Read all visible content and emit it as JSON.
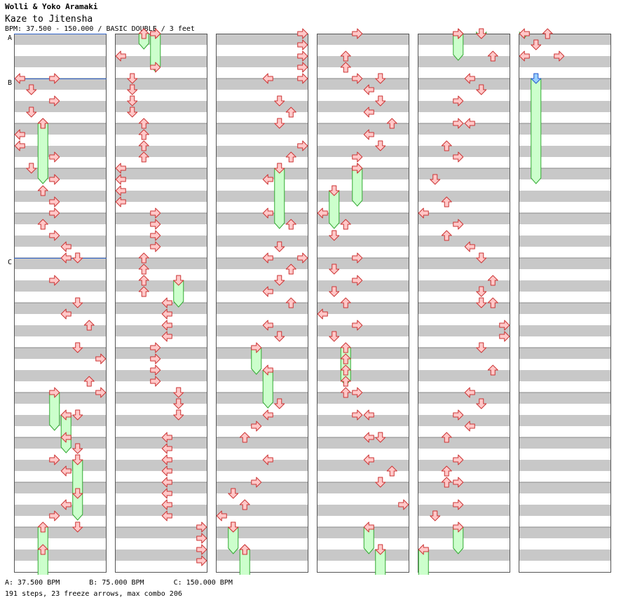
{
  "header": {
    "artist": "Wolli & Yoko Aramaki",
    "title": "Kaze to Jitensha",
    "info": "BPM: 37.500 - 150.000 / BASIC DOUBLE / 3 feet"
  },
  "chart": {
    "columns": 6,
    "measures_per_column": 12,
    "lanes": 8,
    "bpm_markers": [
      {
        "label": "A",
        "column": 0,
        "beat": 0
      },
      {
        "label": "B",
        "column": 0,
        "beat": 4
      },
      {
        "label": "C",
        "column": 0,
        "beat": 20
      }
    ],
    "colors": {
      "arrow_fill": "#ffc8c8",
      "arrow_stroke": "#cc3333",
      "freeze_fill": "#ccffcc",
      "freeze_stroke": "#33aa33",
      "shock_fill": "#9ad0ff",
      "shock_stroke": "#2255cc",
      "stripe": "#c8c8c8",
      "bpm_line": "#3366cc"
    },
    "arrows": [
      [
        0,
        4,
        0
      ],
      [
        0,
        4,
        3
      ],
      [
        0,
        5,
        1
      ],
      [
        0,
        6,
        3
      ],
      [
        0,
        7,
        1
      ],
      [
        0,
        8,
        2
      ],
      [
        0,
        9,
        0
      ],
      [
        0,
        10,
        0
      ],
      [
        0,
        11,
        3
      ],
      [
        0,
        12,
        1
      ],
      [
        0,
        13,
        3
      ],
      [
        0,
        14,
        2
      ],
      [
        0,
        15,
        3
      ],
      [
        0,
        16,
        3
      ],
      [
        0,
        17,
        2
      ],
      [
        0,
        18,
        3
      ],
      [
        0,
        19,
        4
      ],
      [
        0,
        20,
        4
      ],
      [
        0,
        20,
        5
      ],
      [
        0,
        22,
        3
      ],
      [
        0,
        24,
        5
      ],
      [
        0,
        25,
        4
      ],
      [
        0,
        26,
        6
      ],
      [
        0,
        28,
        5
      ],
      [
        0,
        29,
        7
      ],
      [
        0,
        31,
        6
      ],
      [
        0,
        32,
        7
      ],
      [
        0,
        34,
        5
      ],
      [
        0,
        36,
        4
      ],
      [
        0,
        37,
        5
      ],
      [
        0,
        38,
        3
      ],
      [
        0,
        39,
        4
      ],
      [
        0,
        41,
        5
      ],
      [
        0,
        42,
        4
      ],
      [
        0,
        43,
        3
      ],
      [
        0,
        44,
        5
      ],
      [
        0,
        46,
        2
      ],
      [
        1,
        0,
        3
      ],
      [
        1,
        2,
        0
      ],
      [
        1,
        3,
        3
      ],
      [
        1,
        4,
        1
      ],
      [
        1,
        5,
        1
      ],
      [
        1,
        6,
        1
      ],
      [
        1,
        7,
        1
      ],
      [
        1,
        8,
        2
      ],
      [
        1,
        9,
        2
      ],
      [
        1,
        10,
        2
      ],
      [
        1,
        11,
        2
      ],
      [
        1,
        12,
        0
      ],
      [
        1,
        13,
        0
      ],
      [
        1,
        14,
        0
      ],
      [
        1,
        15,
        0
      ],
      [
        1,
        16,
        3
      ],
      [
        1,
        17,
        3
      ],
      [
        1,
        18,
        3
      ],
      [
        1,
        19,
        3
      ],
      [
        1,
        20,
        2
      ],
      [
        1,
        21,
        2
      ],
      [
        1,
        22,
        2
      ],
      [
        1,
        23,
        2
      ],
      [
        1,
        24,
        4
      ],
      [
        1,
        25,
        4
      ],
      [
        1,
        26,
        4
      ],
      [
        1,
        27,
        4
      ],
      [
        1,
        28,
        3
      ],
      [
        1,
        29,
        3
      ],
      [
        1,
        30,
        3
      ],
      [
        1,
        31,
        3
      ],
      [
        1,
        32,
        5
      ],
      [
        1,
        33,
        5
      ],
      [
        1,
        34,
        5
      ],
      [
        1,
        36,
        4
      ],
      [
        1,
        37,
        4
      ],
      [
        1,
        38,
        4
      ],
      [
        1,
        39,
        4
      ],
      [
        1,
        40,
        4
      ],
      [
        1,
        41,
        4
      ],
      [
        1,
        42,
        4
      ],
      [
        1,
        43,
        4
      ],
      [
        1,
        44,
        7
      ],
      [
        1,
        45,
        7
      ],
      [
        1,
        46,
        7
      ],
      [
        1,
        47,
        7
      ],
      [
        2,
        0,
        7
      ],
      [
        2,
        1,
        7
      ],
      [
        2,
        2,
        7
      ],
      [
        2,
        3,
        7
      ],
      [
        2,
        4,
        4
      ],
      [
        2,
        4,
        7
      ],
      [
        2,
        6,
        5
      ],
      [
        2,
        7,
        6
      ],
      [
        2,
        8,
        5
      ],
      [
        2,
        10,
        7
      ],
      [
        2,
        11,
        6
      ],
      [
        2,
        13,
        4
      ],
      [
        2,
        16,
        4
      ],
      [
        2,
        17,
        6
      ],
      [
        2,
        19,
        5
      ],
      [
        2,
        20,
        4
      ],
      [
        2,
        20,
        7
      ],
      [
        2,
        21,
        6
      ],
      [
        2,
        22,
        5
      ],
      [
        2,
        23,
        4
      ],
      [
        2,
        24,
        6
      ],
      [
        2,
        26,
        4
      ],
      [
        2,
        27,
        5
      ],
      [
        2,
        33,
        5
      ],
      [
        2,
        34,
        4
      ],
      [
        2,
        35,
        3
      ],
      [
        2,
        36,
        2
      ],
      [
        2,
        38,
        4
      ],
      [
        2,
        40,
        3
      ],
      [
        2,
        41,
        1
      ],
      [
        2,
        42,
        2
      ],
      [
        2,
        43,
        0
      ],
      [
        2,
        44,
        1
      ],
      [
        2,
        46,
        2
      ],
      [
        3,
        0,
        3
      ],
      [
        3,
        2,
        2
      ],
      [
        3,
        3,
        2
      ],
      [
        3,
        4,
        3
      ],
      [
        3,
        4,
        5
      ],
      [
        3,
        5,
        4
      ],
      [
        3,
        6,
        5
      ],
      [
        3,
        7,
        4
      ],
      [
        3,
        8,
        6
      ],
      [
        3,
        9,
        4
      ],
      [
        3,
        10,
        5
      ],
      [
        3,
        11,
        3
      ],
      [
        3,
        12,
        3
      ],
      [
        3,
        16,
        0
      ],
      [
        3,
        17,
        2
      ],
      [
        3,
        18,
        1
      ],
      [
        3,
        20,
        3
      ],
      [
        3,
        21,
        1
      ],
      [
        3,
        22,
        3
      ],
      [
        3,
        23,
        1
      ],
      [
        3,
        24,
        2
      ],
      [
        3,
        25,
        0
      ],
      [
        3,
        26,
        3
      ],
      [
        3,
        27,
        1
      ],
      [
        3,
        29,
        2
      ],
      [
        3,
        30,
        2
      ],
      [
        3,
        31,
        2
      ],
      [
        3,
        32,
        2
      ],
      [
        3,
        32,
        3
      ],
      [
        3,
        34,
        3
      ],
      [
        3,
        34,
        4
      ],
      [
        3,
        36,
        4
      ],
      [
        3,
        36,
        5
      ],
      [
        3,
        38,
        4
      ],
      [
        3,
        39,
        6
      ],
      [
        3,
        40,
        5
      ],
      [
        3,
        42,
        7
      ],
      [
        4,
        0,
        3
      ],
      [
        4,
        2,
        6
      ],
      [
        4,
        4,
        4
      ],
      [
        4,
        5,
        5
      ],
      [
        4,
        6,
        3
      ],
      [
        4,
        8,
        3
      ],
      [
        4,
        8,
        4
      ],
      [
        4,
        10,
        2
      ],
      [
        4,
        11,
        3
      ],
      [
        4,
        13,
        1
      ],
      [
        4,
        15,
        2
      ],
      [
        4,
        16,
        0
      ],
      [
        4,
        17,
        3
      ],
      [
        4,
        18,
        2
      ],
      [
        4,
        19,
        4
      ],
      [
        4,
        20,
        5
      ],
      [
        4,
        22,
        6
      ],
      [
        4,
        23,
        5
      ],
      [
        4,
        24,
        5
      ],
      [
        4,
        24,
        6
      ],
      [
        4,
        26,
        7
      ],
      [
        4,
        27,
        7
      ],
      [
        4,
        28,
        5
      ],
      [
        4,
        30,
        6
      ],
      [
        4,
        32,
        4
      ],
      [
        4,
        33,
        5
      ],
      [
        4,
        34,
        3
      ],
      [
        4,
        35,
        4
      ],
      [
        4,
        36,
        2
      ],
      [
        4,
        38,
        3
      ],
      [
        4,
        39,
        2
      ],
      [
        4,
        40,
        2
      ],
      [
        4,
        40,
        3
      ],
      [
        4,
        42,
        3
      ],
      [
        4,
        43,
        1
      ],
      [
        5,
        0,
        2
      ],
      [
        5,
        1,
        1
      ],
      [
        5,
        2,
        0
      ],
      [
        5,
        2,
        3
      ]
    ],
    "freezes": [
      [
        0,
        8,
        13,
        2
      ],
      [
        0,
        32,
        35,
        3
      ],
      [
        0,
        34,
        37,
        4
      ],
      [
        0,
        38,
        43,
        5
      ],
      [
        0,
        44,
        49,
        2
      ],
      [
        1,
        0,
        1,
        2
      ],
      [
        1,
        0,
        3,
        3
      ],
      [
        1,
        22,
        24,
        5
      ],
      [
        2,
        12,
        17,
        5
      ],
      [
        2,
        28,
        30,
        3
      ],
      [
        2,
        30,
        33,
        4
      ],
      [
        2,
        44,
        46,
        1
      ],
      [
        2,
        46,
        50,
        2
      ],
      [
        3,
        12,
        15,
        3
      ],
      [
        3,
        14,
        17,
        1
      ],
      [
        3,
        28,
        31,
        2
      ],
      [
        3,
        44,
        46,
        4
      ],
      [
        3,
        46,
        50,
        5
      ],
      [
        4,
        0,
        0,
        5
      ],
      [
        4,
        0,
        2,
        3
      ],
      [
        4,
        44,
        46,
        3
      ],
      [
        4,
        46,
        50,
        0
      ],
      [
        5,
        0,
        0,
        0
      ]
    ],
    "shocks": [
      [
        5,
        4,
        1
      ]
    ],
    "shock_freezes": [
      [
        5,
        4,
        13,
        1
      ]
    ]
  },
  "footer": {
    "bpm_legend": [
      "A: 37.500 BPM",
      "B: 75.000 BPM",
      "C: 150.000 BPM"
    ],
    "stats": "191 steps, 23 freeze arrows, max combo 206"
  }
}
